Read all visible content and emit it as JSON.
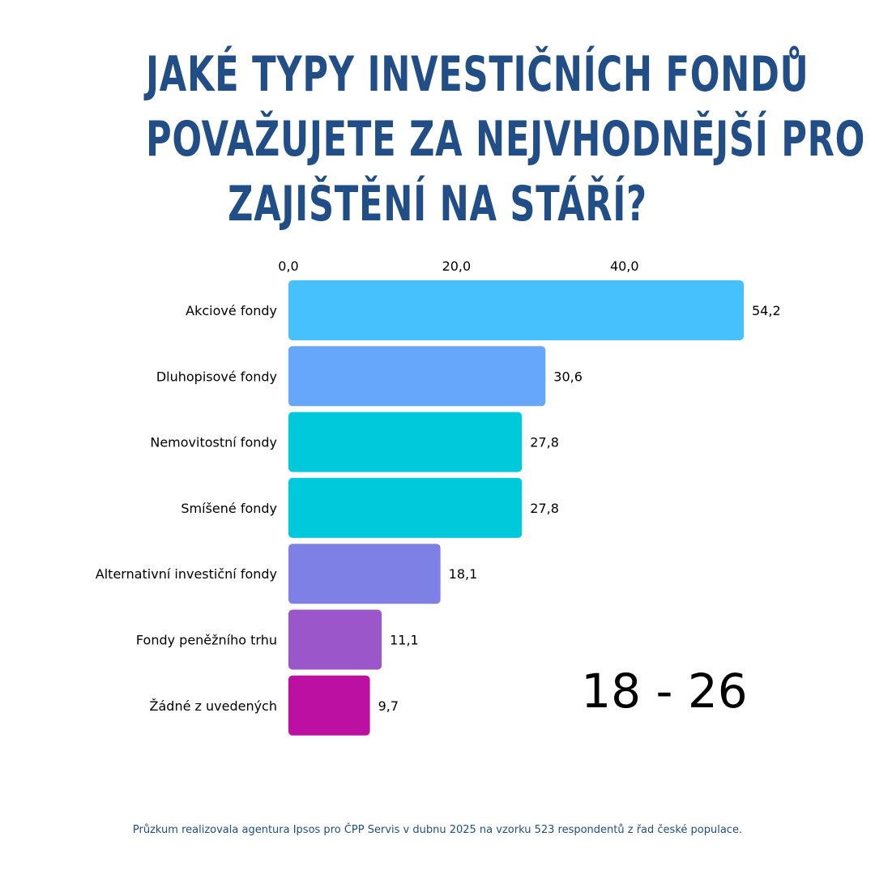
{
  "title_lines": [
    "JAKÉ TYPY INVESTIČNÍCH FONDŮ",
    "POVAŽUJETE ZA NEJVHODNĚJŠÍ PRO",
    "ZAJIŠTĚNÍ NA STÁŘÍ?"
  ],
  "chart_data": {
    "type": "bar",
    "orientation": "horizontal",
    "categories": [
      "Akciové fondy",
      "Dluhopisové fondy",
      "Nemovitostní fondy",
      "Smíšené fondy",
      "Alternativní investiční fondy",
      "Fondy peněžního trhu",
      "Žádné z uvedených"
    ],
    "values": [
      54.2,
      30.6,
      27.8,
      27.8,
      18.1,
      11.1,
      9.7
    ],
    "value_labels": [
      "54,2",
      "30,6",
      "27,8",
      "27,8",
      "18,1",
      "11,1",
      "9,7"
    ],
    "colors": [
      "#47c1fd",
      "#66a6fb",
      "#00c9dc",
      "#00c9dc",
      "#7e80e6",
      "#9b56c9",
      "#bb10a2"
    ],
    "x_ticks": [
      0,
      20,
      40
    ],
    "x_tick_labels": [
      "0,0",
      "20,0",
      "40,0"
    ],
    "xlim": [
      0,
      54.2
    ],
    "x_axis_position": "top",
    "grid": false,
    "legend": "none"
  },
  "age_group": "18 - 26",
  "footnote": "Průzkum realizovala agentura Ipsos pro ČPP Servis v dubnu 2025 na vzorku 523 respondentů z řad české populace."
}
